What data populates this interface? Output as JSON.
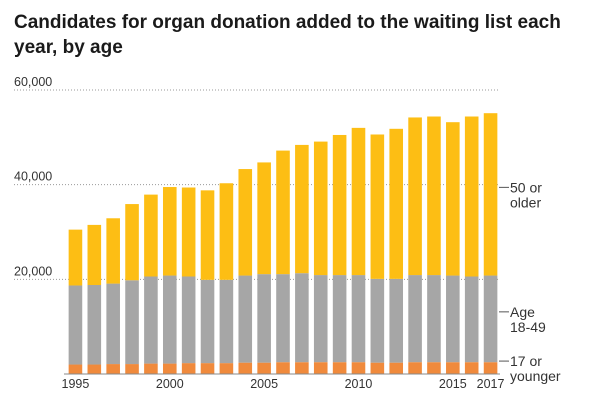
{
  "chart_data": {
    "type": "bar",
    "stacked": true,
    "title": "Candidates for organ donation added to the waiting list each year, by age",
    "xlabel": "",
    "ylabel": "",
    "ylim": [
      0,
      60000
    ],
    "y_ticks": [
      "60,000",
      "40,000",
      "20,000"
    ],
    "y_tick_values": [
      60000,
      40000,
      20000
    ],
    "x_ticks": [
      "1995",
      "2000",
      "2005",
      "2010",
      "2015",
      "2017"
    ],
    "x_tick_values": [
      1995,
      2000,
      2005,
      2010,
      2015,
      2017
    ],
    "grid": true,
    "legend_placement": "right",
    "categories": [
      1995,
      1996,
      1997,
      1998,
      1999,
      2000,
      2001,
      2002,
      2003,
      2004,
      2005,
      2006,
      2007,
      2008,
      2009,
      2010,
      2011,
      2012,
      2013,
      2014,
      2015,
      2016,
      2017
    ],
    "series": [
      {
        "name": "17 or younger",
        "label_lines": [
          "17 or",
          "younger"
        ],
        "color": "#f08a3c",
        "values": [
          2000,
          2000,
          2100,
          2100,
          2200,
          2200,
          2300,
          2300,
          2300,
          2400,
          2400,
          2500,
          2500,
          2500,
          2500,
          2500,
          2400,
          2400,
          2500,
          2500,
          2500,
          2500,
          2500
        ]
      },
      {
        "name": "Age 18-49",
        "label_lines": [
          "Age",
          "18-49"
        ],
        "color": "#a6a6a6",
        "values": [
          16700,
          16800,
          17000,
          17700,
          18400,
          18600,
          18300,
          17600,
          17600,
          18400,
          18700,
          18600,
          18800,
          18400,
          18400,
          18400,
          17700,
          17700,
          18400,
          18400,
          18300,
          18100,
          18300
        ]
      },
      {
        "name": "50 or older",
        "label_lines": [
          "50 or",
          "older"
        ],
        "color": "#fdbe14",
        "values": [
          11800,
          12700,
          13800,
          16100,
          17300,
          18700,
          18800,
          18900,
          20400,
          22500,
          23600,
          26100,
          27100,
          28200,
          29600,
          31100,
          30500,
          31700,
          33300,
          33500,
          32400,
          33800,
          34300
        ]
      }
    ]
  }
}
